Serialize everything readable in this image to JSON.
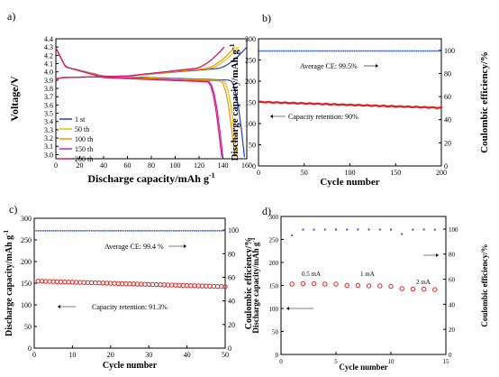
{
  "chart_data": [
    {
      "panel": "a)",
      "type": "line",
      "xlabel": "Discharge capacity/mAh g",
      "xlabel_sup": "-1",
      "ylabel": "Voltage/V",
      "xlim": [
        0,
        160
      ],
      "ylim": [
        2.95,
        4.4
      ],
      "xticks": [
        "0",
        "20",
        "40",
        "60",
        "80",
        "100",
        "120",
        "140",
        "160"
      ],
      "yticks": [
        "3.0",
        "3.1",
        "3.2",
        "3.3",
        "3.4",
        "3.5",
        "3.6",
        "3.7",
        "3.8",
        "3.9",
        "4.0",
        "4.1",
        "4.2",
        "4.3",
        "4.4"
      ],
      "legend_position": "bottom-left",
      "series": [
        {
          "name": "1 st",
          "color": "#1f3fbf",
          "discharge_end": 158,
          "charge_end": 160
        },
        {
          "name": "50 th",
          "color": "#d9c400",
          "discharge_end": 152,
          "charge_end": 153
        },
        {
          "name": "100 th",
          "color": "#ff8c00",
          "discharge_end": 150,
          "charge_end": 150
        },
        {
          "name": "150 th",
          "color": "#c020c0",
          "discharge_end": 140,
          "charge_end": 141
        },
        {
          "name": "200 th",
          "color": "#d81b60",
          "discharge_end": 139,
          "charge_end": 141
        }
      ]
    },
    {
      "panel": "b)",
      "type": "scatter",
      "xlabel": "Cycle number",
      "ylabel": "Discharge capacity/mAh g",
      "ylabel_sup": "-1",
      "y2label": "Coulombic efficiency/%",
      "xlim": [
        0,
        200
      ],
      "ylim": [
        0,
        300
      ],
      "y2lim": [
        0,
        110
      ],
      "xticks": [
        "0",
        "50",
        "100",
        "150",
        "200"
      ],
      "yticks": [
        "0",
        "50",
        "100",
        "150",
        "200",
        "250",
        "300"
      ],
      "y2ticks": [
        "0",
        "20",
        "40",
        "60",
        "80",
        "100"
      ],
      "capacity_start": 151,
      "capacity_end": 137,
      "ce": 99.5,
      "annotations": [
        "Average CE: 99.5%",
        "Capacity retention: 90%"
      ]
    },
    {
      "panel": "c)",
      "type": "scatter",
      "xlabel": "Cycle number",
      "ylabel": "Discharge capacity/mAh g",
      "ylabel_sup": "-1",
      "y2label": "Coulombic efficiency/%",
      "xlim": [
        0,
        50
      ],
      "ylim": [
        0,
        300
      ],
      "y2lim": [
        0,
        110
      ],
      "xticks": [
        "0",
        "10",
        "20",
        "30",
        "40",
        "50"
      ],
      "yticks": [
        "0",
        "50",
        "100",
        "150",
        "200",
        "250",
        "300"
      ],
      "y2ticks": [
        "0",
        "20",
        "40",
        "60",
        "80",
        "100"
      ],
      "capacity_start": 155,
      "capacity_end": 142,
      "ce": 99.4,
      "annotations": [
        "Average CE:  99.4 %",
        "Capacity retention:  91.3%"
      ]
    },
    {
      "panel": "d)",
      "type": "scatter",
      "xlabel": "Cycle number",
      "ylabel": "Discharge capacity/mAh g",
      "ylabel_sup": "-1",
      "y2label": "Coulombic efficiency/%",
      "xlim": [
        0,
        15
      ],
      "ylim": [
        0,
        300
      ],
      "y2lim": [
        0,
        110
      ],
      "xticks": [
        "0",
        "5",
        "10",
        "15"
      ],
      "yticks": [
        "0",
        "50",
        "100",
        "150",
        "200",
        "250",
        "300"
      ],
      "y2ticks": [
        "0",
        "20",
        "40",
        "60",
        "80",
        "100"
      ],
      "x": [
        1,
        2,
        3,
        4,
        5,
        6,
        7,
        8,
        9,
        10,
        11,
        12,
        13,
        14
      ],
      "capacity": [
        153,
        154,
        154,
        153,
        153,
        150,
        150,
        149,
        149,
        148,
        143,
        142,
        142,
        141
      ],
      "ce": [
        95,
        99.5,
        99.5,
        99.5,
        99.6,
        99.5,
        99.6,
        99.6,
        99.6,
        99.5,
        96,
        99.5,
        99.6,
        99.5
      ],
      "annotations": [
        "0.5 mA",
        "1 mA",
        "2 mA"
      ]
    }
  ]
}
